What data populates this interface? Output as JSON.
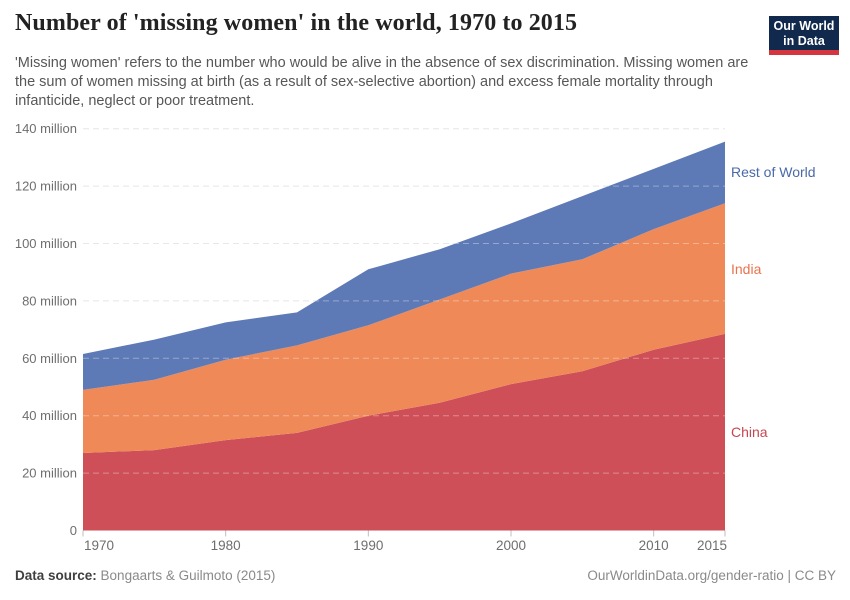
{
  "header": {
    "title": "Number of 'missing women' in the world, 1970 to 2015",
    "subtitle": "'Missing women' refers to the number who would be alive in the absence of sex discrimination. Missing women are the sum of women missing at birth (as a result of sex-selective abortion) and excess female mortality through infanticide, neglect or poor treatment.",
    "logo": {
      "line1": "Our World",
      "line2": "in Data",
      "bg_color": "#12294E",
      "accent_color": "#D4353F"
    }
  },
  "chart_data": {
    "type": "area",
    "stacked": true,
    "title": "Number of 'missing women' in the world, 1970 to 2015",
    "xlabel": "",
    "ylabel": "",
    "unit": "million",
    "x": [
      1970,
      1975,
      1980,
      1985,
      1990,
      1995,
      2000,
      2005,
      2010,
      2015
    ],
    "series": [
      {
        "name": "China",
        "color": "#CE4F58",
        "label_color": "#C6474F",
        "values": [
          27,
          28,
          31.5,
          34,
          40,
          44.5,
          51,
          55.5,
          63,
          68.5
        ]
      },
      {
        "name": "India",
        "color": "#EF8A58",
        "label_color": "#E8744D",
        "values": [
          22,
          24.5,
          28,
          30.5,
          31.5,
          36,
          38.5,
          39,
          42,
          45.5
        ]
      },
      {
        "name": "Rest of World",
        "color": "#5E7AB6",
        "label_color": "#4A69A8",
        "values": [
          12.5,
          14,
          13,
          11.5,
          19.5,
          17.5,
          17.5,
          22,
          21,
          21.5
        ]
      }
    ],
    "totals": [
      61.5,
      66.5,
      72.5,
      76,
      91,
      98,
      107,
      116.5,
      126,
      135.5
    ],
    "ylim": [
      0,
      140
    ],
    "ytick_interval": 20,
    "ytick_labels": [
      "0",
      "20 million",
      "40 million",
      "60 million",
      "80 million",
      "100 million",
      "120 million",
      "140 million"
    ],
    "xticks": [
      1970,
      1980,
      1990,
      2000,
      2010,
      2015
    ],
    "grid": "dashed-horizontal",
    "legend_position": "right"
  },
  "footer": {
    "datasource_label": "Data source:",
    "datasource_value": "Bongaarts & Guilmoto (2015)",
    "link": "OurWorldinData.org/gender-ratio | CC BY"
  }
}
